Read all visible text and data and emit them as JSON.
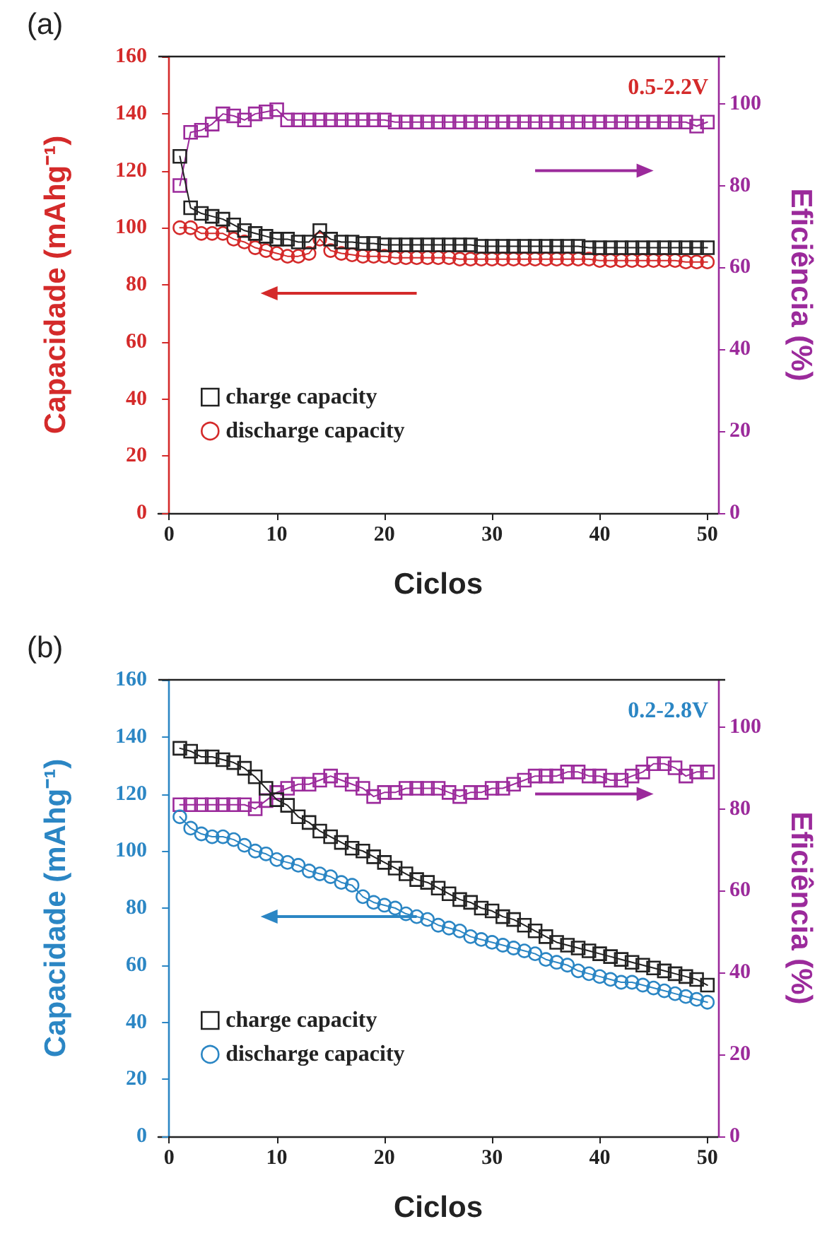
{
  "chart_data": [
    {
      "type": "line",
      "title": "(a)",
      "xlabel": "Ciclos",
      "ylabel": "Capacidade (mAhg⁻¹)",
      "y2label": "Eficiência (%)",
      "annotations": [
        "0.5-2.2V"
      ],
      "x": [
        1,
        2,
        3,
        4,
        5,
        6,
        7,
        8,
        9,
        10,
        11,
        12,
        13,
        14,
        15,
        16,
        17,
        18,
        19,
        20,
        21,
        22,
        23,
        24,
        25,
        26,
        27,
        28,
        29,
        30,
        31,
        32,
        33,
        34,
        35,
        36,
        37,
        38,
        39,
        40,
        41,
        42,
        43,
        44,
        45,
        46,
        47,
        48,
        49,
        50
      ],
      "xlim": [
        -1,
        51
      ],
      "xticks": [
        0,
        10,
        20,
        30,
        40,
        50
      ],
      "ylim": [
        0,
        160
      ],
      "yticks": [
        0,
        20,
        40,
        60,
        80,
        100,
        120,
        140,
        160
      ],
      "y2lim": [
        0,
        111.5
      ],
      "y2ticks": [
        0,
        20,
        40,
        60,
        80,
        100
      ],
      "legend": "bottom left",
      "grid": false,
      "line_style": "solid",
      "series": [
        {
          "name": "charge capacity",
          "color": "#222222",
          "marker": "square",
          "values": [
            125,
            107,
            105,
            104,
            103,
            101,
            99,
            98,
            97,
            96,
            96,
            95,
            95,
            99,
            96,
            95,
            95,
            94.5,
            94.5,
            94,
            94,
            94,
            94,
            94,
            94,
            94,
            94,
            94,
            93.5,
            93.5,
            93.5,
            93.5,
            93.5,
            93.5,
            93.5,
            93.5,
            93.5,
            93.5,
            93,
            93,
            93,
            93,
            93,
            93,
            93,
            93,
            93,
            93,
            93,
            93
          ]
        },
        {
          "name": "discharge capacity",
          "color": "#d42a2a",
          "marker": "circle",
          "values": [
            100,
            100,
            98,
            98,
            98,
            96,
            95,
            93,
            92,
            91,
            90,
            90,
            91,
            96,
            92,
            91,
            90.5,
            90,
            90,
            90,
            89.5,
            89.5,
            89.5,
            89.5,
            89.5,
            89.5,
            89,
            89,
            89,
            89,
            89,
            89,
            89,
            89,
            89,
            89,
            89,
            89,
            89,
            88.5,
            88.5,
            88.5,
            88.5,
            88.5,
            88.5,
            88.5,
            88.5,
            88,
            88,
            88
          ]
        },
        {
          "color": "#9b2a9b",
          "marker": "square",
          "axis": "y2",
          "values": [
            80,
            93,
            93.5,
            95,
            97.5,
            97,
            96,
            97.5,
            98,
            98.5,
            96,
            96,
            96,
            96,
            96,
            96,
            96,
            96,
            96,
            96,
            95.5,
            95.5,
            95.5,
            95.5,
            95.5,
            95.5,
            95.5,
            95.5,
            95.5,
            95.5,
            95.5,
            95.5,
            95.5,
            95.5,
            95.5,
            95.5,
            95.5,
            95.5,
            95.5,
            95.5,
            95.5,
            95.5,
            95.5,
            95.5,
            95.5,
            95.5,
            95.5,
            95.5,
            94.5,
            95.5
          ]
        }
      ]
    },
    {
      "type": "line",
      "title": "(b)",
      "xlabel": "Ciclos",
      "ylabel": "Capacidade (mAhg⁻¹)",
      "y2label": "Eficiência (%)",
      "annotations": [
        "0.2-2.8V"
      ],
      "x": [
        1,
        2,
        3,
        4,
        5,
        6,
        7,
        8,
        9,
        10,
        11,
        12,
        13,
        14,
        15,
        16,
        17,
        18,
        19,
        20,
        21,
        22,
        23,
        24,
        25,
        26,
        27,
        28,
        29,
        30,
        31,
        32,
        33,
        34,
        35,
        36,
        37,
        38,
        39,
        40,
        41,
        42,
        43,
        44,
        45,
        46,
        47,
        48,
        49,
        50
      ],
      "xlim": [
        -1,
        51
      ],
      "xticks": [
        0,
        10,
        20,
        30,
        40,
        50
      ],
      "ylim": [
        0,
        160
      ],
      "yticks": [
        0,
        20,
        40,
        60,
        80,
        100,
        120,
        140,
        160
      ],
      "y2lim": [
        0,
        111.5
      ],
      "y2ticks": [
        0,
        20,
        40,
        60,
        80,
        100
      ],
      "legend": "bottom left",
      "grid": false,
      "line_style": "solid",
      "series": [
        {
          "name": "charge capacity",
          "color": "#222222",
          "marker": "square",
          "values": [
            136,
            135,
            133,
            133,
            132,
            131,
            129,
            126,
            122,
            118,
            116,
            112,
            110,
            107,
            105,
            103,
            101,
            100,
            98,
            96,
            94,
            92,
            90,
            89,
            87,
            85,
            83,
            82,
            80,
            79,
            77,
            76,
            74,
            72,
            70,
            68,
            67,
            66,
            65,
            64,
            63,
            62,
            61,
            60,
            59,
            58,
            57,
            56,
            55,
            53
          ]
        },
        {
          "name": "discharge capacity",
          "color": "#2b86c4",
          "marker": "circle",
          "values": [
            112,
            108,
            106,
            105,
            105,
            104,
            102,
            100,
            99,
            97,
            96,
            95,
            93,
            92,
            91,
            89,
            88,
            84,
            82,
            81,
            80,
            78,
            77,
            76,
            74,
            73,
            72,
            70,
            69,
            68,
            67,
            66,
            65,
            64,
            62,
            61,
            60,
            58,
            57,
            56,
            55,
            54,
            54,
            53,
            52,
            51,
            50,
            49,
            48,
            47
          ]
        },
        {
          "color": "#9b2a9b",
          "marker": "square",
          "axis": "y2",
          "values": [
            81,
            81,
            81,
            81,
            81,
            81,
            81,
            80,
            82,
            84,
            85,
            86,
            86,
            87,
            88,
            87,
            86,
            85,
            83,
            84,
            84,
            85,
            85,
            85,
            85,
            84,
            83,
            84,
            84,
            85,
            85,
            86,
            87,
            88,
            88,
            88,
            89,
            89,
            88,
            88,
            87,
            87,
            88,
            89,
            91,
            91,
            90,
            88,
            89,
            89
          ]
        }
      ]
    }
  ]
}
